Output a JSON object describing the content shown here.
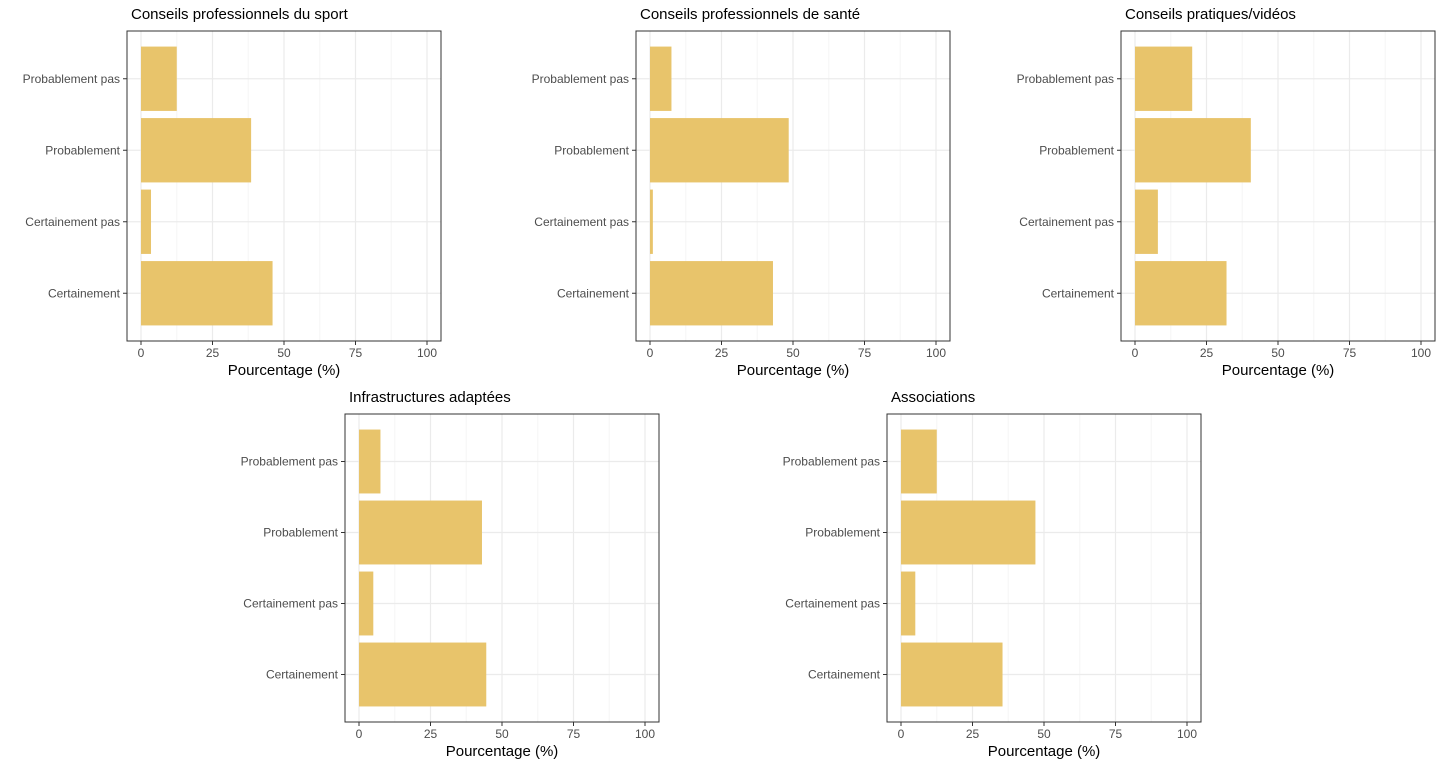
{
  "colors": {
    "bar": "#e8c46b",
    "grid_major": "#ebebeb",
    "grid_minor": "#f5f5f5",
    "panel_border": "#333333",
    "tick_text": "#4d4d4d"
  },
  "chart_data": [
    {
      "type": "bar",
      "orientation": "horizontal",
      "title": "Conseils professionnels du sport",
      "categories": [
        "Probablement pas",
        "Probablement",
        "Certainement pas",
        "Certainement"
      ],
      "values": [
        12.5,
        38.5,
        3.5,
        46
      ],
      "xlabel": "Pourcentage (%)",
      "ylabel": "",
      "xlim": [
        0,
        100
      ],
      "xticks": [
        "0",
        "25",
        "50",
        "75",
        "100"
      ],
      "grid": true
    },
    {
      "type": "bar",
      "orientation": "horizontal",
      "title": "Conseils professionnels de santé",
      "categories": [
        "Probablement pas",
        "Probablement",
        "Certainement pas",
        "Certainement"
      ],
      "values": [
        7.5,
        48.5,
        1,
        43
      ],
      "xlabel": "Pourcentage (%)",
      "ylabel": "",
      "xlim": [
        0,
        100
      ],
      "xticks": [
        "0",
        "25",
        "50",
        "75",
        "100"
      ],
      "grid": true
    },
    {
      "type": "bar",
      "orientation": "horizontal",
      "title": "Conseils pratiques/vidéos",
      "categories": [
        "Probablement pas",
        "Probablement",
        "Certainement pas",
        "Certainement"
      ],
      "values": [
        20,
        40.5,
        8,
        32
      ],
      "xlabel": "Pourcentage (%)",
      "ylabel": "",
      "xlim": [
        0,
        100
      ],
      "xticks": [
        "0",
        "25",
        "50",
        "75",
        "100"
      ],
      "grid": true
    },
    {
      "type": "bar",
      "orientation": "horizontal",
      "title": "Infrastructures adaptées",
      "categories": [
        "Probablement pas",
        "Probablement",
        "Certainement pas",
        "Certainement"
      ],
      "values": [
        7.5,
        43,
        5,
        44.5
      ],
      "xlabel": "Pourcentage (%)",
      "ylabel": "",
      "xlim": [
        0,
        100
      ],
      "xticks": [
        "0",
        "25",
        "50",
        "75",
        "100"
      ],
      "grid": true
    },
    {
      "type": "bar",
      "orientation": "horizontal",
      "title": "Associations",
      "categories": [
        "Probablement pas",
        "Probablement",
        "Certainement pas",
        "Certainement"
      ],
      "values": [
        12.5,
        47,
        5,
        35.5
      ],
      "xlabel": "Pourcentage (%)",
      "ylabel": "",
      "xlim": [
        0,
        100
      ],
      "xticks": [
        "0",
        "25",
        "50",
        "75",
        "100"
      ],
      "grid": true
    }
  ]
}
